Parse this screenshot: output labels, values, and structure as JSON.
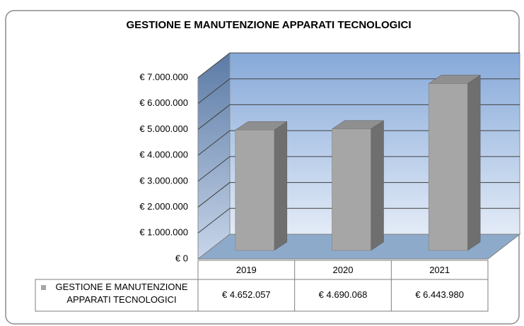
{
  "chart_data": {
    "type": "bar3d",
    "title": "GESTIONE E MANUTENZIONE APPARATI TECNOLOGICI",
    "categories": [
      "2019",
      "2020",
      "2021"
    ],
    "series": [
      {
        "name": "GESTIONE E MANUTENZIONE APPARATI TECNOLOGICI",
        "color": "#a6a6a6",
        "values": [
          4652057,
          4690068,
          6443980
        ],
        "value_labels": [
          "€ 4.652.057",
          "€ 4.690.068",
          "€ 6.443.980"
        ]
      }
    ],
    "ylim": [
      0,
      7000000
    ],
    "yticks": [
      {
        "value": 0,
        "label": "€ 0"
      },
      {
        "value": 1000000,
        "label": "€ 1.000.000"
      },
      {
        "value": 2000000,
        "label": "€ 2.000.000"
      },
      {
        "value": 3000000,
        "label": "€ 3.000.000"
      },
      {
        "value": 4000000,
        "label": "€ 4.000.000"
      },
      {
        "value": 5000000,
        "label": "€ 5.000.000"
      },
      {
        "value": 6000000,
        "label": "€ 6.000.000"
      },
      {
        "value": 7000000,
        "label": "€ 7.000.000"
      }
    ],
    "grid": true,
    "legend": "table"
  }
}
